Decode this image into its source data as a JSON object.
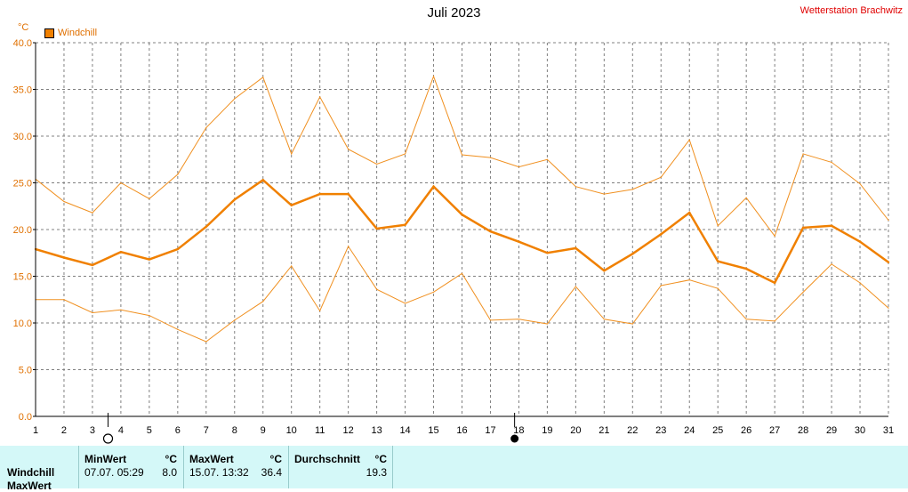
{
  "header": {
    "title": "Juli 2023",
    "station": "Wetterstation Brachwitz",
    "unit": "°C",
    "legend_label": "Windchill"
  },
  "colors": {
    "series_main": "#f08000",
    "series_range": "#f09020",
    "axis": "#000000",
    "grid": "#808080",
    "ylabel": "#e07000",
    "station": "#e00000",
    "stats_bg": "#d4f8f8"
  },
  "moon": {
    "full_moon_day": 3.55,
    "new_moon_day": 17.85
  },
  "stats": {
    "row_label": "Windchill",
    "row_label_2": "MaxWert",
    "min_header": "MinWert",
    "min_unit": "°C",
    "min_time": "07.07.  05:29",
    "min_value": "8.0",
    "max_header": "MaxWert",
    "max_unit": "°C",
    "max_time": "15.07.  13:32",
    "max_value": "36.4",
    "avg_header": "Durchschnitt",
    "avg_unit": "°C",
    "avg_value": "19.3"
  },
  "chart_data": {
    "type": "line",
    "title": "Juli 2023",
    "ylabel": "°C",
    "xlabel": "",
    "x": [
      1,
      2,
      3,
      4,
      5,
      6,
      7,
      8,
      9,
      10,
      11,
      12,
      13,
      14,
      15,
      16,
      17,
      18,
      19,
      20,
      21,
      22,
      23,
      24,
      25,
      26,
      27,
      28,
      29,
      30,
      31
    ],
    "xlim": [
      1,
      31
    ],
    "ylim": [
      0,
      40
    ],
    "yticks": [
      0,
      5,
      10,
      15,
      20,
      25,
      30,
      35,
      40
    ],
    "ytick_labels": [
      "0.0",
      "5.0",
      "10.0",
      "15.0",
      "20.0",
      "25.0",
      "30.0",
      "35.0",
      "40.0"
    ],
    "grid": true,
    "legend": "top-left",
    "series": [
      {
        "name": "Windchill",
        "role": "mean",
        "values": [
          17.9,
          17.0,
          16.2,
          17.6,
          16.8,
          17.9,
          20.3,
          23.2,
          25.3,
          22.6,
          23.8,
          23.8,
          20.1,
          20.5,
          24.6,
          21.6,
          19.8,
          18.7,
          17.5,
          18.0,
          15.6,
          17.4,
          19.5,
          21.8,
          16.6,
          15.8,
          14.3,
          20.2,
          20.4,
          18.7,
          16.5
        ]
      },
      {
        "role": "max",
        "values": [
          25.4,
          23.0,
          21.8,
          25.0,
          23.3,
          25.9,
          30.9,
          34.0,
          36.3,
          28.1,
          34.2,
          28.6,
          27.0,
          28.1,
          36.4,
          28.0,
          27.7,
          26.7,
          27.5,
          24.6,
          23.8,
          24.3,
          25.6,
          29.6,
          20.4,
          23.4,
          19.3,
          28.1,
          27.2,
          24.9,
          21.0
        ]
      },
      {
        "role": "min",
        "values": [
          12.5,
          12.5,
          11.1,
          11.4,
          10.8,
          9.3,
          8.0,
          10.3,
          12.3,
          16.1,
          11.3,
          18.2,
          13.6,
          12.1,
          13.3,
          15.3,
          10.3,
          10.4,
          9.9,
          13.9,
          10.4,
          9.9,
          14.0,
          14.6,
          13.7,
          10.4,
          10.2,
          13.3,
          16.3,
          14.3,
          11.6
        ]
      }
    ]
  }
}
